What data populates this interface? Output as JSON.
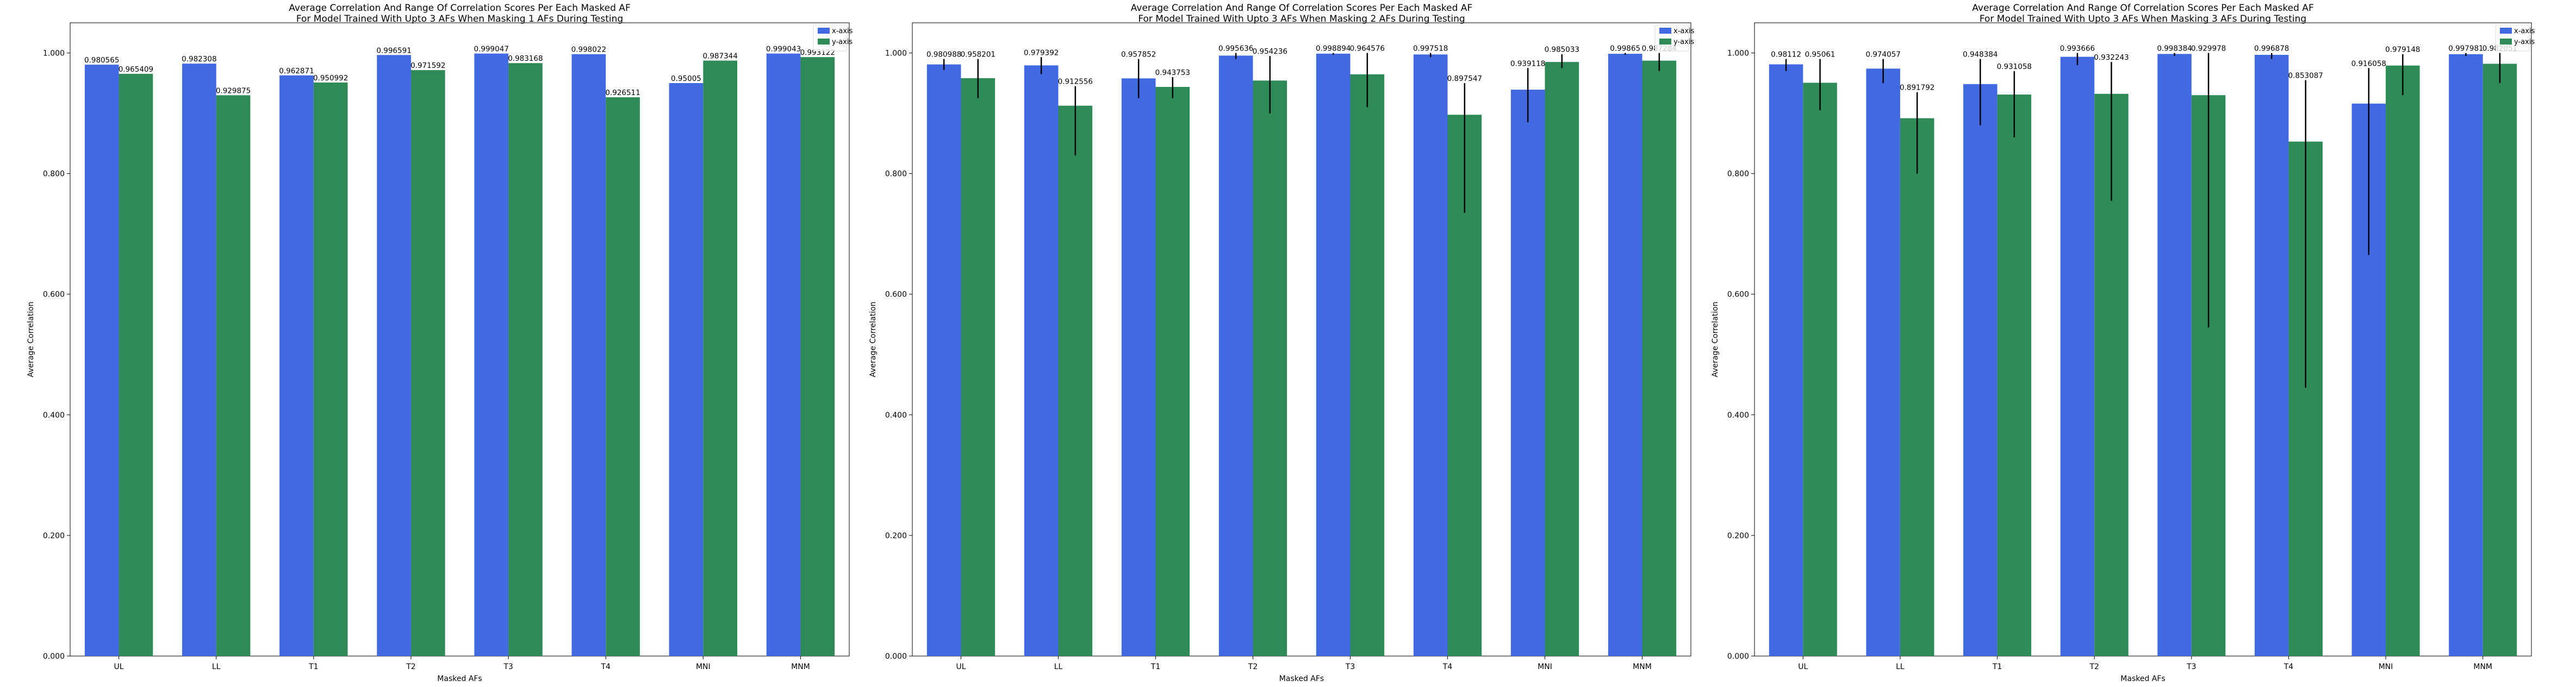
{
  "colors": {
    "x_axis": "#4169e1",
    "y_axis": "#2e8b57",
    "errorbar": "#000000"
  },
  "chart_data": [
    {
      "type": "bar",
      "title": "Average Correlation And Range Of Correlation Scores Per Each Masked AF",
      "subtitle": "For Model Trained With Upto 3 AFs When Masking 1 AFs During Testing",
      "xlabel": "Masked AFs",
      "ylabel": "Average Correlation",
      "ylim": [
        0,
        1.05
      ],
      "yticks": [
        "0.000",
        "0.200",
        "0.400",
        "0.600",
        "0.800",
        "1.000"
      ],
      "ytick_values": [
        0,
        0.2,
        0.4,
        0.6,
        0.8,
        1.0
      ],
      "categories": [
        "UL",
        "LL",
        "T1",
        "T2",
        "T3",
        "T4",
        "MNI",
        "MNM"
      ],
      "legend": [
        "x-axis",
        "y-axis"
      ],
      "series": [
        {
          "name": "x-axis",
          "values": [
            0.980565,
            0.982308,
            0.962871,
            0.996591,
            0.999047,
            0.998022,
            0.95005,
            0.999043
          ],
          "labels": [
            "0.980565",
            "0.982308",
            "0.962871",
            "0.996591",
            "0.999047",
            "0.998022",
            "0.95005",
            "0.999043"
          ],
          "err_low": [
            0,
            0,
            0,
            0,
            0,
            0,
            0,
            0
          ],
          "err_high": [
            0,
            0,
            0,
            0,
            0,
            0,
            0,
            0
          ]
        },
        {
          "name": "y-axis",
          "values": [
            0.965409,
            0.929875,
            0.950992,
            0.971592,
            0.983168,
            0.926511,
            0.987344,
            0.993122
          ],
          "labels": [
            "0.965409",
            "0.929875",
            "0.950992",
            "0.971592",
            "0.983168",
            "0.926511",
            "0.987344",
            "0.993122"
          ],
          "err_low": [
            0,
            0,
            0,
            0,
            0,
            0,
            0,
            0
          ],
          "err_high": [
            0,
            0,
            0,
            0,
            0,
            0,
            0,
            0
          ]
        }
      ]
    },
    {
      "type": "bar",
      "title": "Average Correlation And Range Of Correlation Scores Per Each Masked AF",
      "subtitle": "For Model Trained With Upto 3 AFs When Masking 2 AFs During Testing",
      "xlabel": "Masked AFs",
      "ylabel": "Average Correlation",
      "ylim": [
        0,
        1.05
      ],
      "yticks": [
        "0.000",
        "0.200",
        "0.400",
        "0.600",
        "0.800",
        "1.000"
      ],
      "ytick_values": [
        0,
        0.2,
        0.4,
        0.6,
        0.8,
        1.0
      ],
      "categories": [
        "UL",
        "LL",
        "T1",
        "T2",
        "T3",
        "T4",
        "MNI",
        "MNM"
      ],
      "legend": [
        "x-axis",
        "y-axis"
      ],
      "series": [
        {
          "name": "x-axis",
          "values": [
            0.980988,
            0.979392,
            0.957852,
            0.995636,
            0.998894,
            0.997518,
            0.939118,
            0.99865
          ],
          "labels": [
            "0.980988",
            "0.979392",
            "0.957852",
            "0.995636",
            "0.998894",
            "0.997518",
            "0.939118",
            "0.99865"
          ],
          "err_low": [
            0.972,
            0.965,
            0.925,
            0.99,
            0.997,
            0.993,
            0.885,
            0.997
          ],
          "err_high": [
            0.99,
            0.993,
            0.99,
            1.0,
            1.0,
            1.0,
            0.975,
            1.0
          ]
        },
        {
          "name": "y-axis",
          "values": [
            0.958201,
            0.912556,
            0.943753,
            0.954236,
            0.964576,
            0.897547,
            0.985033,
            0.987284
          ],
          "labels": [
            "0.958201",
            "0.912556",
            "0.943753",
            "0.954236",
            "0.964576",
            "0.897547",
            "0.985033",
            "0.987284"
          ],
          "err_low": [
            0.925,
            0.83,
            0.925,
            0.9,
            0.91,
            0.735,
            0.975,
            0.97
          ],
          "err_high": [
            0.99,
            0.945,
            0.96,
            0.995,
            1.0,
            0.95,
            0.998,
            1.0
          ]
        }
      ]
    },
    {
      "type": "bar",
      "title": "Average Correlation And Range Of Correlation Scores Per Each Masked AF",
      "subtitle": "For Model Trained With Upto 3 AFs When Masking 3 AFs During Testing",
      "xlabel": "Masked AFs",
      "ylabel": "Average Correlation",
      "ylim": [
        0,
        1.05
      ],
      "yticks": [
        "0.000",
        "0.200",
        "0.400",
        "0.600",
        "0.800",
        "1.000"
      ],
      "ytick_values": [
        0,
        0.2,
        0.4,
        0.6,
        0.8,
        1.0
      ],
      "categories": [
        "UL",
        "LL",
        "T1",
        "T2",
        "T3",
        "T4",
        "MNI",
        "MNM"
      ],
      "legend": [
        "x-axis",
        "y-axis"
      ],
      "series": [
        {
          "name": "x-axis",
          "values": [
            0.98112,
            0.974057,
            0.948384,
            0.993666,
            0.998384,
            0.996878,
            0.916058,
            0.997981
          ],
          "labels": [
            "0.98112",
            "0.974057",
            "0.948384",
            "0.993666",
            "0.998384",
            "0.996878",
            "0.916058",
            "0.997981"
          ],
          "err_low": [
            0.97,
            0.95,
            0.88,
            0.98,
            0.995,
            0.99,
            0.665,
            0.995
          ],
          "err_high": [
            0.99,
            0.99,
            0.99,
            1.0,
            1.0,
            1.0,
            0.975,
            1.0
          ]
        },
        {
          "name": "y-axis",
          "values": [
            0.95061,
            0.891792,
            0.931058,
            0.932243,
            0.929978,
            0.853087,
            0.979148,
            0.982051
          ],
          "labels": [
            "0.95061",
            "0.891792",
            "0.931058",
            "0.932243",
            "0.929978",
            "0.853087",
            "0.979148",
            "0.982051"
          ],
          "err_low": [
            0.905,
            0.8,
            0.86,
            0.755,
            0.545,
            0.445,
            0.93,
            0.95
          ],
          "err_high": [
            0.99,
            0.935,
            0.97,
            0.985,
            1.0,
            0.955,
            0.998,
            1.0
          ]
        }
      ]
    }
  ]
}
